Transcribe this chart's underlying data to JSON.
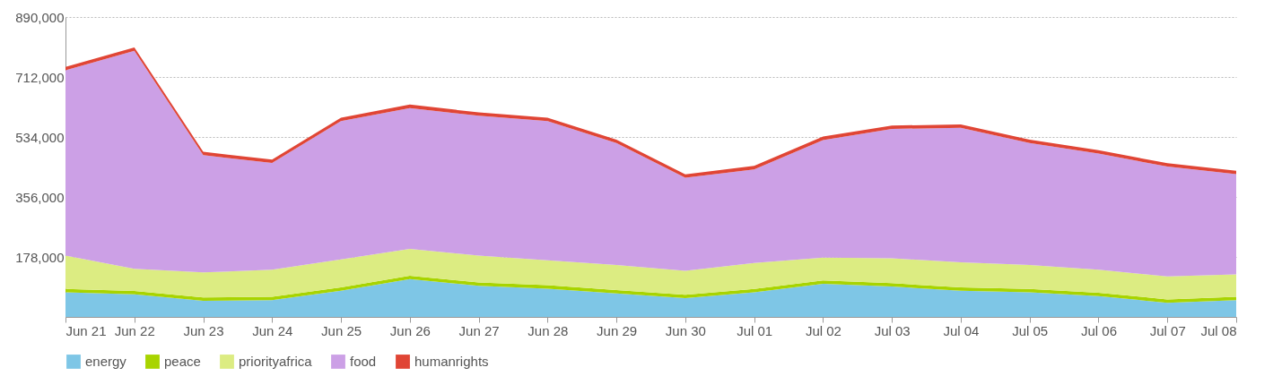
{
  "chart_data": {
    "type": "area",
    "stacked": true,
    "categories": [
      "Jun 21",
      "Jun 22",
      "Jun 23",
      "Jun 24",
      "Jun 25",
      "Jun 26",
      "Jun 27",
      "Jun 28",
      "Jun 29",
      "Jun 30",
      "Jul 01",
      "Jul 02",
      "Jul 03",
      "Jul 04",
      "Jul 05",
      "Jul 06",
      "Jul 07",
      "Jul 08"
    ],
    "series": [
      {
        "name": "energy",
        "color": "#7ec6e6",
        "values": [
          73000,
          67000,
          48000,
          50000,
          78000,
          112000,
          92000,
          84000,
          70000,
          56000,
          73000,
          98000,
          90000,
          78000,
          73000,
          62000,
          42000,
          50000
        ]
      },
      {
        "name": "peace",
        "color": "#a8d400",
        "values": [
          10000,
          10000,
          10000,
          10000,
          10000,
          10000,
          10000,
          10000,
          10000,
          10000,
          10000,
          10000,
          10000,
          10000,
          10000,
          10000,
          10000,
          10000
        ]
      },
      {
        "name": "priorityafrica",
        "color": "#dcec82",
        "values": [
          99000,
          66000,
          74000,
          80000,
          83000,
          80000,
          80000,
          74000,
          74000,
          71000,
          77000,
          68000,
          74000,
          74000,
          71000,
          68000,
          68000,
          66000
        ]
      },
      {
        "name": "food",
        "color": "#cca0e6",
        "values": [
          550000,
          647000,
          348000,
          317000,
          410000,
          418000,
          415000,
          413000,
          362000,
          276000,
          278000,
          349000,
          384000,
          399000,
          362000,
          345000,
          326000,
          298000
        ]
      },
      {
        "name": "humanrights",
        "color": "#e04535",
        "values": [
          10000,
          10000,
          10000,
          10000,
          10000,
          10000,
          10000,
          10000,
          10000,
          10000,
          10000,
          10000,
          10000,
          10000,
          10000,
          10000,
          10000,
          10000
        ]
      }
    ],
    "ylim": [
      0,
      890000
    ],
    "yticks": [
      {
        "value": 178000,
        "label": "178,000"
      },
      {
        "value": 356000,
        "label": "356,000"
      },
      {
        "value": 534000,
        "label": "534,000"
      },
      {
        "value": 712000,
        "label": "712,000"
      },
      {
        "value": 890000,
        "label": "890,000"
      }
    ],
    "grid": "y",
    "legend": "bottom"
  }
}
